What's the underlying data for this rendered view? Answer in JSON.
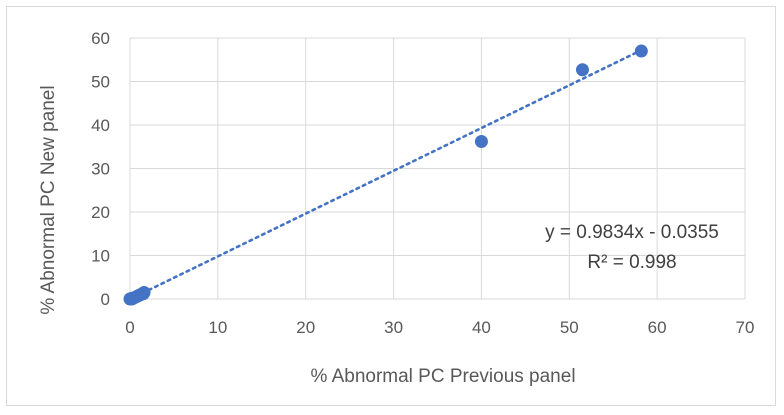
{
  "chart_data": {
    "type": "scatter",
    "xlabel": "% Abnormal PC Previous panel",
    "ylabel": "% Abnormal PC New panel",
    "xlim": [
      0,
      70
    ],
    "ylim": [
      0,
      60
    ],
    "xticks": [
      0,
      10,
      20,
      30,
      40,
      50,
      60,
      70
    ],
    "yticks": [
      0,
      10,
      20,
      30,
      40,
      50,
      60
    ],
    "grid": true,
    "marker_color": "#4472c4",
    "trendline": {
      "type": "linear",
      "slope": 0.9834,
      "intercept": -0.0355,
      "style": "dotted",
      "color": "#4472c4",
      "equation_label": "y = 0.9834x - 0.0355",
      "r2_label": "R² = 0.998"
    },
    "points": [
      {
        "x": 0.0,
        "y": 0.0
      },
      {
        "x": 0.1,
        "y": 0.1
      },
      {
        "x": 0.2,
        "y": 0.0
      },
      {
        "x": 0.3,
        "y": 0.2
      },
      {
        "x": 0.5,
        "y": 0.3
      },
      {
        "x": 0.8,
        "y": 0.6
      },
      {
        "x": 1.0,
        "y": 0.8
      },
      {
        "x": 1.2,
        "y": 1.0
      },
      {
        "x": 1.5,
        "y": 1.2
      },
      {
        "x": 1.6,
        "y": 1.5
      },
      {
        "x": 40.0,
        "y": 36.2
      },
      {
        "x": 51.5,
        "y": 52.7
      },
      {
        "x": 58.2,
        "y": 57.0
      }
    ]
  }
}
